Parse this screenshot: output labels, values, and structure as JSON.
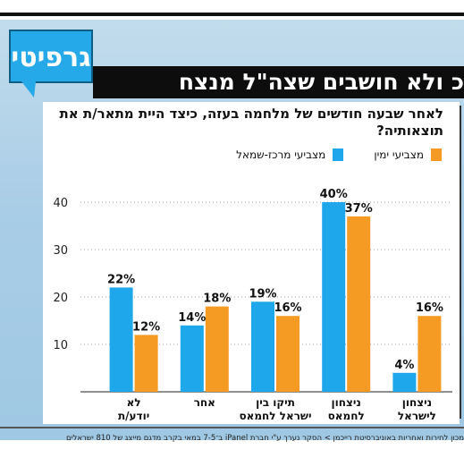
{
  "section_tag": "גרפיטי",
  "headline": "כ ולא חושבים שצה\"ל מנצח",
  "colors": {
    "accent_blue": "#1ea7ea",
    "accent_orange": "#f59a22",
    "headline_bg": "#0d0d0d"
  },
  "footer": "מכון לחירות ואחריות באוניברסיטת רייכמן > הסקר נערך ע\"י חברת iPanel ב־7-5 במאי בקרב מדגם מייצג של 810 ישראלים",
  "chart_data": {
    "type": "bar",
    "title": "לאחר שבעה חודשים של מלחמה בעזה, כיצד היית מתאר/ת את תוצאותיה?",
    "categories": [
      "לא יודע/ת",
      "אחר",
      "תיקו בין ישראל לחמאס",
      "ניצחון לחמאס",
      "ניצחון לישראל"
    ],
    "series": [
      {
        "name": "מצביעי מרכז-שמאל",
        "color": "#1ea7ea",
        "values": [
          22,
          14,
          19,
          40,
          4
        ]
      },
      {
        "name": "מצביעי ימין",
        "color": "#f59a22",
        "values": [
          12,
          18,
          16,
          37,
          16
        ]
      }
    ],
    "value_suffix": "%",
    "ylim": [
      0,
      45
    ],
    "yticks": [
      10,
      20,
      30,
      40
    ],
    "grid": "horizontal dotted",
    "legend": "top-right"
  }
}
